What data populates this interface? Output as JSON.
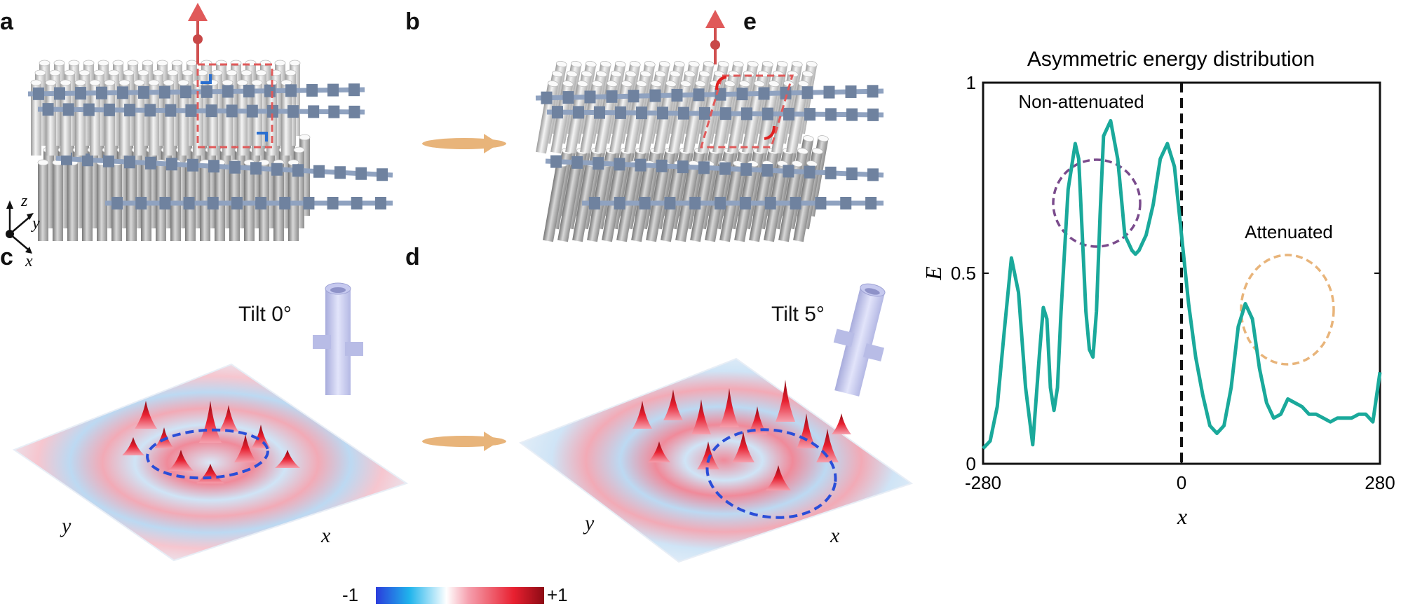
{
  "panels": {
    "a": "a",
    "b": "b",
    "c": "c",
    "d": "d",
    "e": "e"
  },
  "panel_c": {
    "tilt": "Tilt 0°",
    "xlabel": "x",
    "ylabel": "y"
  },
  "panel_d": {
    "tilt": "Tilt 5°",
    "xlabel": "x",
    "ylabel": "y"
  },
  "axes_triad": {
    "z": "z",
    "y": "y",
    "x": "x"
  },
  "colorbar": {
    "min_label": "-1",
    "max_label": "+1",
    "colors": [
      "#2a3cdc",
      "#20b4ec",
      "#ffffff",
      "#f5a0ae",
      "#e82030",
      "#8c0a14"
    ]
  },
  "colors": {
    "accent_arrow": "#e05a5a",
    "flow_arrow": "#e8b47a",
    "curve": "#1aa99b",
    "purple_circle": "#7a4b8c",
    "orange_circle": "#e8b47a"
  },
  "chart_data": {
    "type": "line",
    "title": "Asymmetric  energy distribution",
    "xlabel": "x",
    "ylabel": "E",
    "xlim": [
      -280,
      280
    ],
    "ylim": [
      0,
      1
    ],
    "xticks": [
      "-280",
      "0",
      "280"
    ],
    "yticks": [
      "0",
      "0.5",
      "1"
    ],
    "divider_x": 0,
    "annotations": [
      {
        "text": "Non-attenuated",
        "x": -140,
        "y": 0.72
      },
      {
        "text": "Attenuated",
        "x": 145,
        "y": 0.4
      }
    ],
    "x": [
      -280,
      -270,
      -260,
      -250,
      -240,
      -230,
      -220,
      -210,
      -200,
      -195,
      -190,
      -185,
      -180,
      -175,
      -170,
      -160,
      -150,
      -145,
      -140,
      -135,
      -130,
      -125,
      -120,
      -115,
      -110,
      -100,
      -90,
      -85,
      -80,
      -75,
      -70,
      -65,
      -60,
      -55,
      -50,
      -40,
      -30,
      -20,
      -10,
      0,
      10,
      20,
      30,
      40,
      50,
      60,
      70,
      80,
      90,
      100,
      110,
      120,
      130,
      140,
      150,
      160,
      170,
      180,
      190,
      200,
      210,
      220,
      230,
      240,
      250,
      260,
      270,
      280
    ],
    "y": [
      0.04,
      0.06,
      0.15,
      0.35,
      0.54,
      0.45,
      0.2,
      0.05,
      0.3,
      0.41,
      0.38,
      0.2,
      0.14,
      0.2,
      0.4,
      0.72,
      0.84,
      0.8,
      0.6,
      0.4,
      0.3,
      0.28,
      0.4,
      0.65,
      0.86,
      0.9,
      0.8,
      0.7,
      0.6,
      0.58,
      0.56,
      0.55,
      0.56,
      0.58,
      0.6,
      0.68,
      0.8,
      0.84,
      0.78,
      0.6,
      0.42,
      0.28,
      0.18,
      0.1,
      0.08,
      0.1,
      0.2,
      0.36,
      0.42,
      0.38,
      0.25,
      0.16,
      0.12,
      0.13,
      0.17,
      0.16,
      0.15,
      0.13,
      0.13,
      0.12,
      0.11,
      0.12,
      0.12,
      0.12,
      0.13,
      0.13,
      0.11,
      0.24
    ]
  }
}
